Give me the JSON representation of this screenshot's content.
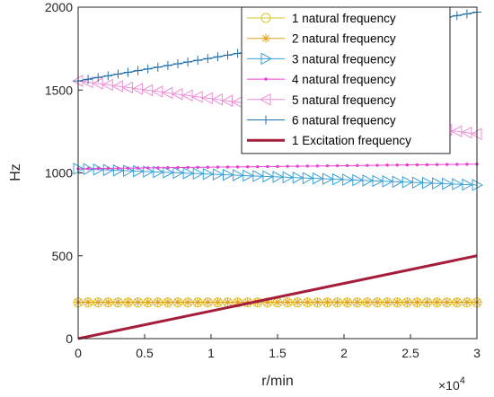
{
  "chart_data": {
    "type": "line",
    "title": "",
    "xlabel": "r/min",
    "ylabel": "Hz",
    "x_multiplier_label": "×10",
    "x_multiplier_exp": "4",
    "xlim": [
      0,
      30000
    ],
    "ylim": [
      0,
      2000
    ],
    "x_ticks": [
      0,
      5000,
      10000,
      15000,
      20000,
      25000,
      30000
    ],
    "x_tick_labels": [
      "0",
      "0.5",
      "1",
      "1.5",
      "2",
      "2.5",
      "3"
    ],
    "y_ticks": [
      0,
      500,
      1000,
      1500,
      2000
    ],
    "y_tick_labels": [
      "0",
      "500",
      "1000",
      "1500",
      "2000"
    ],
    "grid": false,
    "legend_position": "top-right",
    "series": [
      {
        "name": "1 natural frequency",
        "color": "#d9c62b",
        "marker": "circle",
        "start": [
          0,
          218
        ],
        "end": [
          30000,
          218
        ]
      },
      {
        "name": "2 natural frequency",
        "color": "#e3a21a",
        "marker": "asterisk",
        "start": [
          0,
          220
        ],
        "end": [
          30000,
          220
        ]
      },
      {
        "name": "3 natural frequency",
        "color": "#3aa0d8",
        "marker": "triangle-right",
        "start": [
          0,
          1025
        ],
        "end": [
          30000,
          927
        ]
      },
      {
        "name": "4 natural frequency",
        "color": "#ea3fd0",
        "marker": "dot",
        "start": [
          0,
          1025
        ],
        "end": [
          30000,
          1053
        ]
      },
      {
        "name": "5 natural frequency",
        "color": "#ee8fd6",
        "marker": "triangle-left",
        "start": [
          0,
          1555
        ],
        "end": [
          30000,
          1235
        ]
      },
      {
        "name": "6 natural frequency",
        "color": "#1f6fa8",
        "marker": "plus",
        "start": [
          0,
          1555
        ],
        "end": [
          30000,
          1970
        ]
      },
      {
        "name": "1 Excitation frequency",
        "color": "#a51d3a",
        "marker": "none",
        "start": [
          0,
          0
        ],
        "end": [
          30000,
          500
        ]
      }
    ]
  }
}
